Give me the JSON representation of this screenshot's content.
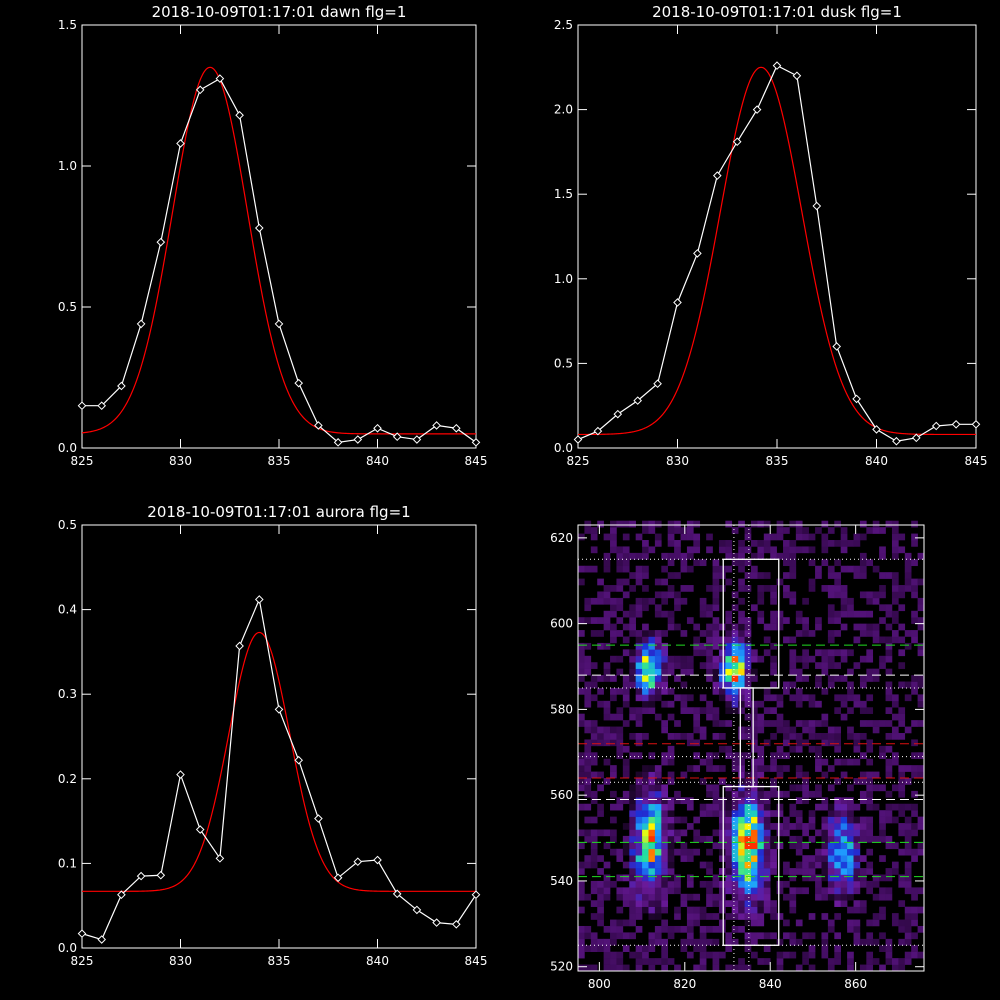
{
  "chart_data": [
    {
      "type": "line",
      "title": "2018-10-09T01:17:01 dawn flg=1",
      "xlim": [
        825,
        845
      ],
      "ylim": [
        0,
        1.5
      ],
      "xticks": [
        "825",
        "830",
        "835",
        "840",
        "845"
      ],
      "yticks": [
        "0.0",
        "0.5",
        "1.0",
        "1.5"
      ],
      "series": [
        {
          "color": "#ffffff",
          "markers": "diamond",
          "x": [
            825,
            826,
            827,
            828,
            829,
            830,
            831,
            832,
            833,
            834,
            835,
            836,
            837,
            838,
            839,
            840,
            841,
            842,
            843,
            844,
            845
          ],
          "y": [
            0.15,
            0.15,
            0.22,
            0.44,
            0.73,
            1.08,
            1.27,
            1.31,
            1.18,
            0.78,
            0.44,
            0.23,
            0.08,
            0.02,
            0.03,
            0.07,
            0.04,
            0.03,
            0.08,
            0.07,
            0.02
          ]
        },
        {
          "color": "#ff0000",
          "fit": {
            "kind": "gaussian",
            "center": 831.5,
            "sigma": 1.9,
            "amplitude": 1.3,
            "baseline": 0.05
          }
        }
      ]
    },
    {
      "type": "line",
      "title": "2018-10-09T01:17:01 dusk flg=1",
      "xlim": [
        825,
        845
      ],
      "ylim": [
        0,
        2.5
      ],
      "xticks": [
        "825",
        "830",
        "835",
        "840",
        "845"
      ],
      "yticks": [
        "0.0",
        "0.5",
        "1.0",
        "1.5",
        "2.0",
        "2.5"
      ],
      "series": [
        {
          "color": "#ffffff",
          "markers": "diamond",
          "x": [
            825,
            826,
            827,
            828,
            829,
            830,
            831,
            832,
            833,
            834,
            835,
            836,
            837,
            838,
            839,
            840,
            841,
            842,
            843,
            844,
            845
          ],
          "y": [
            0.05,
            0.1,
            0.2,
            0.28,
            0.38,
            0.86,
            1.15,
            1.61,
            1.81,
            2.0,
            2.26,
            2.2,
            1.43,
            0.6,
            0.29,
            0.11,
            0.04,
            0.06,
            0.13,
            0.14,
            0.14
          ]
        },
        {
          "color": "#ff0000",
          "fit": {
            "kind": "gaussian",
            "center": 834.2,
            "sigma": 2.05,
            "amplitude": 2.17,
            "baseline": 0.08
          }
        }
      ]
    },
    {
      "type": "line",
      "title": "2018-10-09T01:17:01 aurora flg=1",
      "xlim": [
        825,
        845
      ],
      "ylim": [
        0,
        0.5
      ],
      "xticks": [
        "825",
        "830",
        "835",
        "840",
        "845"
      ],
      "yticks": [
        "0.0",
        "0.1",
        "0.2",
        "0.3",
        "0.4",
        "0.5"
      ],
      "series": [
        {
          "color": "#ffffff",
          "markers": "diamond",
          "x": [
            825,
            826,
            827,
            828,
            829,
            830,
            831,
            832,
            833,
            834,
            835,
            836,
            837,
            838,
            839,
            840,
            841,
            842,
            843,
            844,
            845
          ],
          "y": [
            0.017,
            0.01,
            0.063,
            0.085,
            0.086,
            0.205,
            0.14,
            0.106,
            0.357,
            0.412,
            0.282,
            0.222,
            0.153,
            0.083,
            0.102,
            0.104,
            0.064,
            0.045,
            0.03,
            0.028,
            0.063
          ]
        },
        {
          "color": "#ff0000",
          "fit": {
            "kind": "gaussian",
            "center": 834.0,
            "sigma": 1.55,
            "amplitude": 0.306,
            "baseline": 0.067
          }
        }
      ]
    },
    {
      "type": "heatmap",
      "title": "",
      "xlim": [
        795,
        876
      ],
      "ylim": [
        519,
        623
      ],
      "xticks": [
        "800",
        "820",
        "840",
        "860"
      ],
      "yticks": [
        "520",
        "540",
        "560",
        "580",
        "600",
        "620"
      ],
      "colormap": [
        "#000000",
        "#3a0a55",
        "#6a1a9a",
        "#1b2fd6",
        "#1fa0ff",
        "#22e0a0",
        "#ffff00",
        "#ff3000"
      ],
      "blobs": [
        {
          "x": 811,
          "y": 589,
          "sx": 2.0,
          "sy": 4.0,
          "amp": 0.8
        },
        {
          "x": 831,
          "y": 589,
          "sx": 2.0,
          "sy": 4.5,
          "amp": 0.92
        },
        {
          "x": 811,
          "y": 548,
          "sx": 2.5,
          "sy": 8.0,
          "amp": 0.75
        },
        {
          "x": 834,
          "y": 547,
          "sx": 2.6,
          "sy": 7.5,
          "amp": 1.0
        },
        {
          "x": 856,
          "y": 546,
          "sx": 2.2,
          "sy": 6.0,
          "amp": 0.62
        }
      ],
      "lines": {
        "vertical_dotted_x": [
          831.5,
          835.0
        ],
        "white_dotted_y": [
          615,
          585,
          569,
          563,
          525
        ],
        "green_dashed_y": [
          595,
          549,
          541
        ],
        "white_dashed_y": [
          588,
          559
        ],
        "red_dashed_y": [
          572,
          564
        ]
      },
      "boxes": [
        {
          "x0": 829,
          "x1": 842,
          "y0": 585,
          "y1": 615
        },
        {
          "x0": 829,
          "x1": 842,
          "y0": 525,
          "y1": 562
        },
        {
          "x0": 833,
          "x1": 836,
          "y0": 562,
          "y1": 585
        }
      ]
    }
  ]
}
